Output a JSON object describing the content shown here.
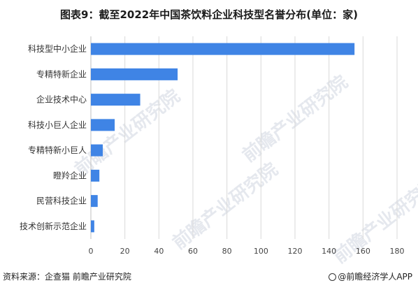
{
  "title": "图表9：截至2022年中国茶饮料企业科技型名誉分布(单位：家)",
  "footer": {
    "source": "资料来源：企查猫 前瞻产业研究院",
    "brand": "@前瞻经济学人APP"
  },
  "watermark": "前瞻产业研究院",
  "colors": {
    "bar": "#3f84e5",
    "grid": "#d9d9d9",
    "axis": "#bfbfbf"
  },
  "chart_data": {
    "type": "bar",
    "orientation": "horizontal",
    "categories": [
      "科技型中小企业",
      "专精特新企业",
      "企业技术中心",
      "科技小巨人企业",
      "专精特新小巨人",
      "瞪羚企业",
      "民营科技企业",
      "技术创新示范企业"
    ],
    "values": [
      155,
      51,
      29,
      14,
      7,
      5,
      4,
      2
    ],
    "xlim": [
      0,
      180
    ],
    "xticks": [
      0,
      20,
      40,
      60,
      80,
      100,
      120,
      140,
      160,
      180
    ],
    "grid": "vertical",
    "legend": "none"
  }
}
